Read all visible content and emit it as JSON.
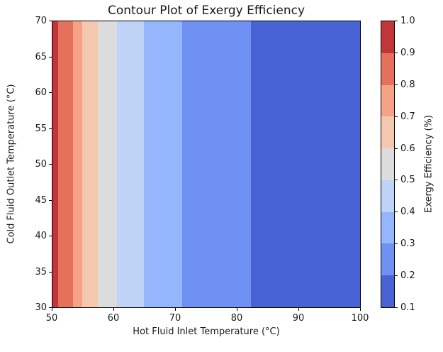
{
  "chart_data": {
    "type": "heatmap",
    "title": "Contour Plot of Exergy Efficiency",
    "xlabel": "Hot Fluid Inlet Temperature (°C)",
    "ylabel": "Cold Fluid Outlet Temperature (°C)",
    "colorbar_label": "Exergy Efficiency (%)",
    "xlim": [
      50,
      100
    ],
    "ylim": [
      30,
      70
    ],
    "grid": false,
    "x_ticks": [
      {
        "value": 50,
        "label": "50"
      },
      {
        "value": 60,
        "label": "60"
      },
      {
        "value": 70,
        "label": "70"
      },
      {
        "value": 80,
        "label": "80"
      },
      {
        "value": 90,
        "label": "90"
      },
      {
        "value": 100,
        "label": "100"
      }
    ],
    "y_ticks": [
      {
        "value": 30,
        "label": "30"
      },
      {
        "value": 35,
        "label": "35"
      },
      {
        "value": 40,
        "label": "40"
      },
      {
        "value": 45,
        "label": "45"
      },
      {
        "value": 50,
        "label": "50"
      },
      {
        "value": 55,
        "label": "55"
      },
      {
        "value": 60,
        "label": "60"
      },
      {
        "value": 65,
        "label": "65"
      },
      {
        "value": 70,
        "label": "70"
      }
    ],
    "colorbar_range": [
      0.1,
      1.0
    ],
    "colorbar_ticks": [
      {
        "value": 1.0,
        "label": "1.0"
      },
      {
        "value": 0.9,
        "label": "0.9"
      },
      {
        "value": 0.8,
        "label": "0.8"
      },
      {
        "value": 0.7,
        "label": "0.7"
      },
      {
        "value": 0.6,
        "label": "0.6"
      },
      {
        "value": 0.5,
        "label": "0.5"
      },
      {
        "value": 0.4,
        "label": "0.4"
      },
      {
        "value": 0.3,
        "label": "0.3"
      },
      {
        "value": 0.2,
        "label": "0.2"
      },
      {
        "value": 0.1,
        "label": "0.1"
      }
    ],
    "bands": [
      {
        "x_from": 50.0,
        "x_to": 50.9,
        "eff_from": 0.9,
        "eff_to": 1.0,
        "color": "#c13639"
      },
      {
        "x_from": 50.9,
        "x_to": 53.3,
        "eff_from": 0.8,
        "eff_to": 0.9,
        "color": "#e5715c"
      },
      {
        "x_from": 53.3,
        "x_to": 54.8,
        "eff_from": 0.7,
        "eff_to": 0.8,
        "color": "#f5a287"
      },
      {
        "x_from": 54.8,
        "x_to": 57.4,
        "eff_from": 0.6,
        "eff_to": 0.7,
        "color": "#f3c8ae"
      },
      {
        "x_from": 57.4,
        "x_to": 60.5,
        "eff_from": 0.5,
        "eff_to": 0.6,
        "color": "#dcdcdc"
      },
      {
        "x_from": 60.5,
        "x_to": 64.9,
        "eff_from": 0.4,
        "eff_to": 0.5,
        "color": "#bed3f6"
      },
      {
        "x_from": 64.9,
        "x_to": 71.1,
        "eff_from": 0.3,
        "eff_to": 0.4,
        "color": "#95b5fd"
      },
      {
        "x_from": 71.1,
        "x_to": 82.3,
        "eff_from": 0.2,
        "eff_to": 0.3,
        "color": "#6f91f3"
      },
      {
        "x_from": 82.3,
        "x_to": 100.0,
        "eff_from": 0.1,
        "eff_to": 0.2,
        "color": "#4a63d4"
      }
    ],
    "colorbar_segment_colors_top_to_bottom": [
      "#c13639",
      "#e5715c",
      "#f5a287",
      "#f3c8ae",
      "#dcdcdc",
      "#bed3f6",
      "#95b5fd",
      "#6f91f3",
      "#4a63d4"
    ],
    "colors": {
      "spine": "#000000",
      "text": "#1a1a1a",
      "background": "#ffffff"
    }
  }
}
